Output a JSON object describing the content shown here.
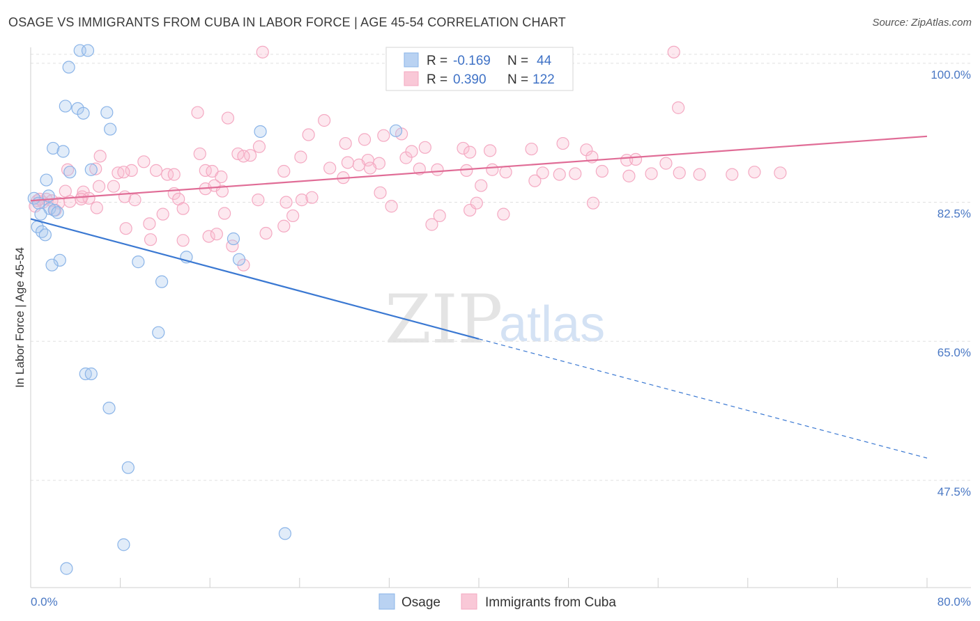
{
  "header": {
    "title": "OSAGE VS IMMIGRANTS FROM CUBA IN LABOR FORCE | AGE 45-54 CORRELATION CHART",
    "source": "Source: ZipAtlas.com"
  },
  "watermark": {
    "zip": "ZIP",
    "atlas": "atlas"
  },
  "legend_top": {
    "rows": [
      {
        "r_label": "R =",
        "r_value": "-0.169",
        "n_label": "N =",
        "n_value": "44"
      },
      {
        "r_label": "R =",
        "r_value": "0.390",
        "n_label": "N =",
        "n_value": "122"
      }
    ]
  },
  "chart_data": {
    "type": "scatter",
    "title": "OSAGE VS IMMIGRANTS FROM CUBA IN LABOR FORCE | AGE 45-54 CORRELATION CHART",
    "xlabel": "",
    "ylabel": "In Labor Force | Age 45-54",
    "xlim": [
      0,
      80
    ],
    "ylim": [
      34,
      102
    ],
    "x_tick_labels": [
      "0.0%",
      "80.0%"
    ],
    "y_ticks": [
      100,
      82.5,
      65,
      47.5
    ],
    "y_tick_labels": [
      "100.0%",
      "82.5%",
      "65.0%",
      "47.5%"
    ],
    "grid": "horizontal dashed",
    "legend_position": "bottom-center",
    "series": [
      {
        "name": "Osage",
        "color": "#8ab4e8",
        "line_color": "#3a78d2",
        "trend": {
          "x_start": 0,
          "y_start": 80.4,
          "x_solid_end": 40,
          "y_solid_end": 65.3,
          "x_dash_end": 80,
          "y_dash_end": 50.3
        },
        "points": [
          [
            4.4,
            101.6
          ],
          [
            5.1,
            101.6
          ],
          [
            3.4,
            99.5
          ],
          [
            3.1,
            94.6
          ],
          [
            4.2,
            94.3
          ],
          [
            4.7,
            93.7
          ],
          [
            6.8,
            93.8
          ],
          [
            7.1,
            91.7
          ],
          [
            20.5,
            91.4
          ],
          [
            32.6,
            91.5
          ],
          [
            2.0,
            89.3
          ],
          [
            2.9,
            88.9
          ],
          [
            1.4,
            85.3
          ],
          [
            3.5,
            86.3
          ],
          [
            5.4,
            86.6
          ],
          [
            0.3,
            83.0
          ],
          [
            0.7,
            82.4
          ],
          [
            1.6,
            83.3
          ],
          [
            1.7,
            81.7
          ],
          [
            0.9,
            81.0
          ],
          [
            2.1,
            81.5
          ],
          [
            2.4,
            81.2
          ],
          [
            0.6,
            79.4
          ],
          [
            1.0,
            78.8
          ],
          [
            1.3,
            78.4
          ],
          [
            2.6,
            75.2
          ],
          [
            1.9,
            74.6
          ],
          [
            9.6,
            75.0
          ],
          [
            13.9,
            75.6
          ],
          [
            18.1,
            77.9
          ],
          [
            18.6,
            75.3
          ],
          [
            11.7,
            72.5
          ],
          [
            11.4,
            66.1
          ],
          [
            4.9,
            60.9
          ],
          [
            5.4,
            60.9
          ],
          [
            7.0,
            56.6
          ],
          [
            8.7,
            49.1
          ],
          [
            22.7,
            40.8
          ],
          [
            8.3,
            39.4
          ],
          [
            3.2,
            36.4
          ]
        ]
      },
      {
        "name": "Immigrants from Cuba",
        "color": "#f4a9c2",
        "line_color": "#e06c96",
        "trend": {
          "x_start": 0,
          "y_start": 82.7,
          "x_end": 80,
          "y_end": 90.8
        },
        "points": [
          [
            20.7,
            101.4
          ],
          [
            57.4,
            101.4
          ],
          [
            57.8,
            94.4
          ],
          [
            14.9,
            93.8
          ],
          [
            17.6,
            93.1
          ],
          [
            26.2,
            92.8
          ],
          [
            24.8,
            91.0
          ],
          [
            28.1,
            89.9
          ],
          [
            29.8,
            90.4
          ],
          [
            31.5,
            90.9
          ],
          [
            33.1,
            91.1
          ],
          [
            35.2,
            89.4
          ],
          [
            20.4,
            89.5
          ],
          [
            19.6,
            88.4
          ],
          [
            18.5,
            88.6
          ],
          [
            19.0,
            88.3
          ],
          [
            24.1,
            88.2
          ],
          [
            28.3,
            87.5
          ],
          [
            30.1,
            87.8
          ],
          [
            31.1,
            87.4
          ],
          [
            33.5,
            88.1
          ],
          [
            34.0,
            88.9
          ],
          [
            38.6,
            89.3
          ],
          [
            39.2,
            88.8
          ],
          [
            41.0,
            89.0
          ],
          [
            44.7,
            89.2
          ],
          [
            47.5,
            89.9
          ],
          [
            49.6,
            89.1
          ],
          [
            50.1,
            88.2
          ],
          [
            53.2,
            87.8
          ],
          [
            54.0,
            87.9
          ],
          [
            56.7,
            87.4
          ],
          [
            6.2,
            88.3
          ],
          [
            10.1,
            87.6
          ],
          [
            11.2,
            86.5
          ],
          [
            15.1,
            88.6
          ],
          [
            7.8,
            86.2
          ],
          [
            9.0,
            86.5
          ],
          [
            8.3,
            86.3
          ],
          [
            5.8,
            86.7
          ],
          [
            3.3,
            86.6
          ],
          [
            12.2,
            86.0
          ],
          [
            12.8,
            86.0
          ],
          [
            15.6,
            86.5
          ],
          [
            16.2,
            86.4
          ],
          [
            17.0,
            85.7
          ],
          [
            22.6,
            86.4
          ],
          [
            27.9,
            85.6
          ],
          [
            26.7,
            86.8
          ],
          [
            30.3,
            86.8
          ],
          [
            29.3,
            87.2
          ],
          [
            34.7,
            86.7
          ],
          [
            36.3,
            86.6
          ],
          [
            38.9,
            86.5
          ],
          [
            41.2,
            86.6
          ],
          [
            42.4,
            86.3
          ],
          [
            45.7,
            86.2
          ],
          [
            47.2,
            86.0
          ],
          [
            51.0,
            86.4
          ],
          [
            55.4,
            86.1
          ],
          [
            57.9,
            86.2
          ],
          [
            59.7,
            86.0
          ],
          [
            62.6,
            86.0
          ],
          [
            64.6,
            86.3
          ],
          [
            66.9,
            86.2
          ],
          [
            53.4,
            85.8
          ],
          [
            48.6,
            86.1
          ],
          [
            45.0,
            85.2
          ],
          [
            40.2,
            84.6
          ],
          [
            7.4,
            84.5
          ],
          [
            6.1,
            84.5
          ],
          [
            4.7,
            83.8
          ],
          [
            4.6,
            83.2
          ],
          [
            5.2,
            83.0
          ],
          [
            4.5,
            82.9
          ],
          [
            3.1,
            83.9
          ],
          [
            2.5,
            82.4
          ],
          [
            1.4,
            82.9
          ],
          [
            1.9,
            82.7
          ],
          [
            1.1,
            82.5
          ],
          [
            2.2,
            81.5
          ],
          [
            0.6,
            82.7
          ],
          [
            0.4,
            82.0
          ],
          [
            0.8,
            82.9
          ],
          [
            3.5,
            82.6
          ],
          [
            5.9,
            81.8
          ],
          [
            8.4,
            83.2
          ],
          [
            9.3,
            82.8
          ],
          [
            12.8,
            83.6
          ],
          [
            13.2,
            82.9
          ],
          [
            15.6,
            84.2
          ],
          [
            16.4,
            84.6
          ],
          [
            17.1,
            83.9
          ],
          [
            13.6,
            81.7
          ],
          [
            11.8,
            81.0
          ],
          [
            17.3,
            81.1
          ],
          [
            20.3,
            82.8
          ],
          [
            22.8,
            82.5
          ],
          [
            24.2,
            82.8
          ],
          [
            25.1,
            83.1
          ],
          [
            31.2,
            83.7
          ],
          [
            32.2,
            82.0
          ],
          [
            39.2,
            81.5
          ],
          [
            42.2,
            81.0
          ],
          [
            39.8,
            82.4
          ],
          [
            50.2,
            82.4
          ],
          [
            8.5,
            79.2
          ],
          [
            10.6,
            79.8
          ],
          [
            13.6,
            77.7
          ],
          [
            15.9,
            78.2
          ],
          [
            10.7,
            77.8
          ],
          [
            16.6,
            78.5
          ],
          [
            18.0,
            77.0
          ],
          [
            19.0,
            74.6
          ],
          [
            21.0,
            78.6
          ],
          [
            22.6,
            79.5
          ],
          [
            23.4,
            80.8
          ],
          [
            35.8,
            79.7
          ],
          [
            36.5,
            80.8
          ]
        ]
      }
    ]
  }
}
